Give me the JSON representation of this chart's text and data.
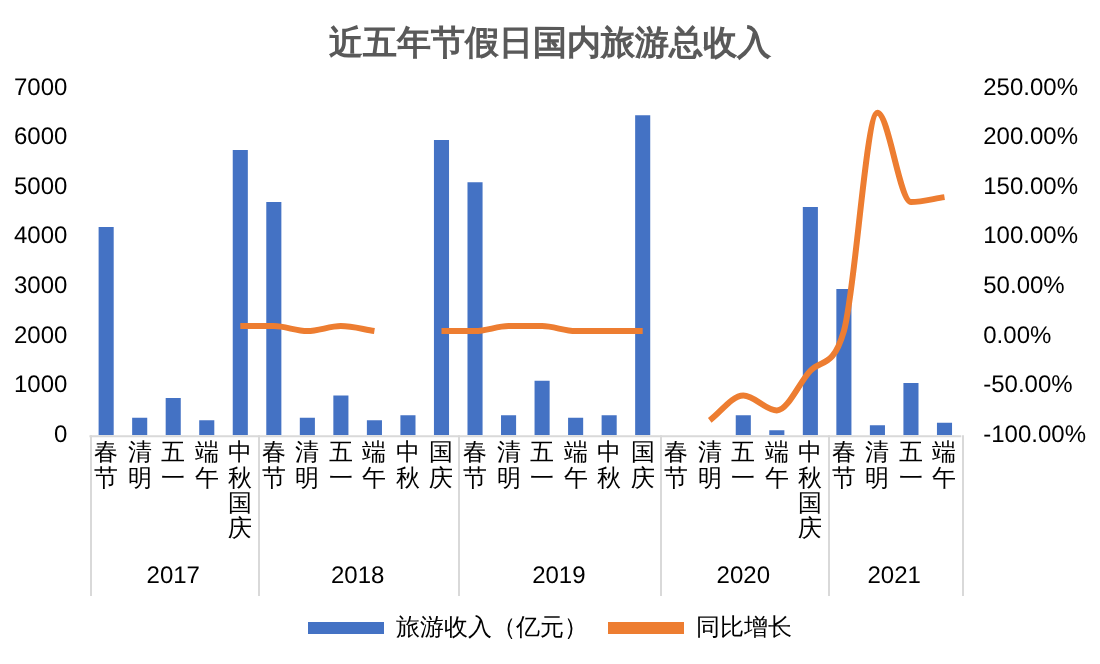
{
  "chart_data": {
    "type": "bar",
    "title": "近五年节假日国内旅游总收入",
    "categories": [
      "春节",
      "清明",
      "五一",
      "端午",
      "中秋国庆",
      "春节",
      "清明",
      "五一",
      "端午",
      "中秋",
      "国庆",
      "春节",
      "清明",
      "五一",
      "端午",
      "中秋",
      "国庆",
      "春节",
      "清明",
      "五一",
      "端午",
      "中秋国庆",
      "春节",
      "清明",
      "五一",
      "端午"
    ],
    "series": [
      {
        "name": "旅游收入（亿元）",
        "color": "#4472c4",
        "values": [
          4200,
          350,
          750,
          300,
          5750,
          4700,
          350,
          800,
          300,
          400,
          5950,
          5100,
          400,
          1100,
          350,
          400,
          6450,
          null,
          0,
          400,
          100,
          4600,
          2950,
          200,
          1050,
          250
        ]
      },
      {
        "name": "同比增长",
        "type": "line",
        "axis": "y2",
        "color": "#ed7d31",
        "values": [
          null,
          null,
          null,
          null,
          10,
          10,
          5,
          10,
          5,
          null,
          5,
          5,
          10,
          10,
          5,
          5,
          5,
          null,
          -85,
          -60,
          -75,
          -35,
          5,
          225,
          135,
          140
        ]
      }
    ],
    "ylim": [
      0,
      7000
    ],
    "yticks": [
      0,
      1000,
      2000,
      3000,
      4000,
      5000,
      6000,
      7000
    ],
    "y2lim": [
      -100,
      250
    ],
    "y2ticks": [
      {
        "value": -100,
        "label": "-100.00%"
      },
      {
        "value": -50,
        "label": "-50.00%"
      },
      {
        "value": 0,
        "label": "0.00%"
      },
      {
        "value": 50,
        "label": "50.00%"
      },
      {
        "value": 100,
        "label": "100.00%"
      },
      {
        "value": 150,
        "label": "150.00%"
      },
      {
        "value": 200,
        "label": "200.00%"
      },
      {
        "value": 250,
        "label": "250.00%"
      }
    ],
    "annotations": [
      "2017",
      "2018",
      "2019",
      "2020",
      "2021"
    ],
    "grid": false,
    "legend": "bottom",
    "marker": "none"
  }
}
